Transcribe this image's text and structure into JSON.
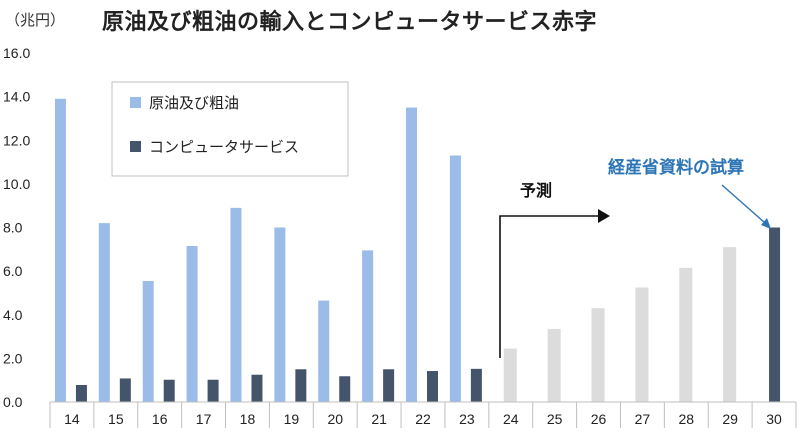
{
  "header": {
    "unit": "（兆円）",
    "title": "原油及び粗油の輸入とコンピュータサービス赤字"
  },
  "chart_data": {
    "type": "bar",
    "categories": [
      "14",
      "15",
      "16",
      "17",
      "18",
      "19",
      "20",
      "21",
      "22",
      "23",
      "24",
      "25",
      "26",
      "27",
      "28",
      "29",
      "30"
    ],
    "ylim": [
      0,
      16
    ],
    "yticks": [
      "0.0",
      "2.0",
      "4.0",
      "6.0",
      "8.0",
      "10.0",
      "12.0",
      "14.0",
      "16.0"
    ],
    "grid": false,
    "legend_position": "upper-left",
    "series": [
      {
        "name": "原油及び粗油",
        "color": "#9bbbe8",
        "values": [
          13.9,
          8.2,
          5.55,
          7.15,
          8.9,
          8.0,
          4.65,
          6.95,
          13.5,
          11.3,
          null,
          null,
          null,
          null,
          null,
          null,
          null
        ]
      },
      {
        "name": "コンピュータサービス",
        "color": "#44546a",
        "values": [
          0.78,
          1.08,
          1.02,
          1.02,
          1.25,
          1.5,
          1.18,
          1.5,
          1.42,
          1.52,
          null,
          null,
          null,
          null,
          null,
          null,
          8.0
        ]
      },
      {
        "name": "",
        "color": "#dcdcdc",
        "values": [
          null,
          null,
          null,
          null,
          null,
          null,
          null,
          null,
          null,
          null,
          2.45,
          3.35,
          4.3,
          5.25,
          6.15,
          7.1,
          null
        ]
      }
    ],
    "annotations": [
      {
        "text": "予測",
        "color": "#111111"
      },
      {
        "text": "経産省資料の試算",
        "color": "#2e75b6"
      }
    ]
  }
}
